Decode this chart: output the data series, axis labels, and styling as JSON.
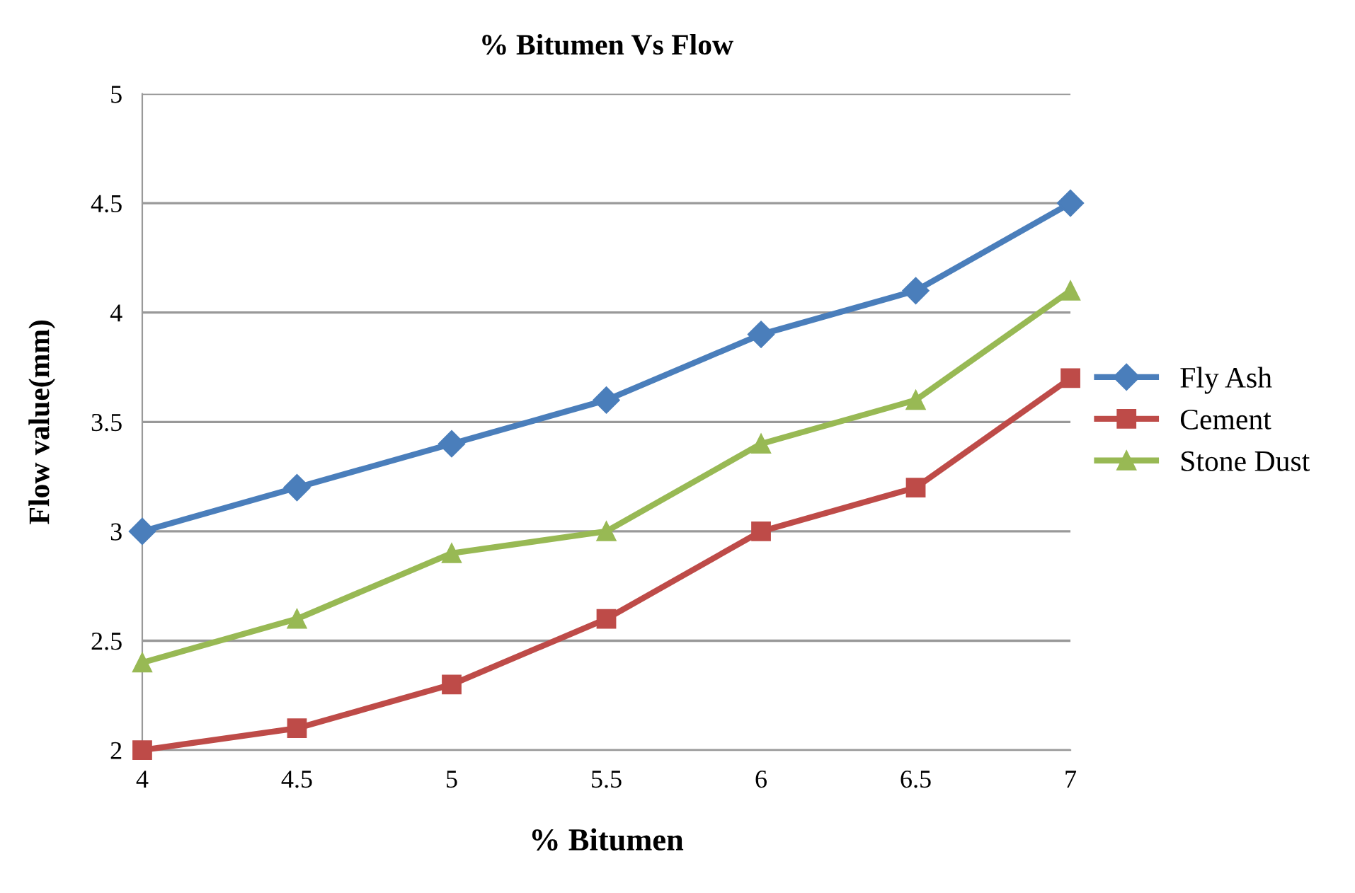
{
  "chart_data": {
    "type": "line",
    "title": "% Bitumen Vs Flow",
    "xlabel": "% Bitumen",
    "ylabel": "Flow value(mm)",
    "x": [
      4,
      4.5,
      5,
      5.5,
      6,
      6.5,
      7
    ],
    "series": [
      {
        "name": "Fly Ash",
        "color": "#4a7ebb",
        "marker": "diamond",
        "values": [
          3.0,
          3.2,
          3.4,
          3.6,
          3.9,
          4.1,
          4.5
        ]
      },
      {
        "name": "Cement",
        "color": "#be4b48",
        "marker": "square",
        "values": [
          2.0,
          2.1,
          2.3,
          2.6,
          3.0,
          3.2,
          3.7
        ]
      },
      {
        "name": "Stone Dust",
        "color": "#98b954",
        "marker": "triangle",
        "values": [
          2.4,
          2.6,
          2.9,
          3.0,
          3.4,
          3.6,
          4.1
        ]
      }
    ],
    "xlim": [
      4,
      7
    ],
    "xticks": [
      4,
      4.5,
      5,
      5.5,
      6,
      6.5,
      7
    ],
    "ylim": [
      2,
      5
    ],
    "yticks": [
      2,
      2.5,
      3,
      3.5,
      4,
      4.5,
      5
    ],
    "grid": "y",
    "legend": "right",
    "line_style": "solid"
  }
}
